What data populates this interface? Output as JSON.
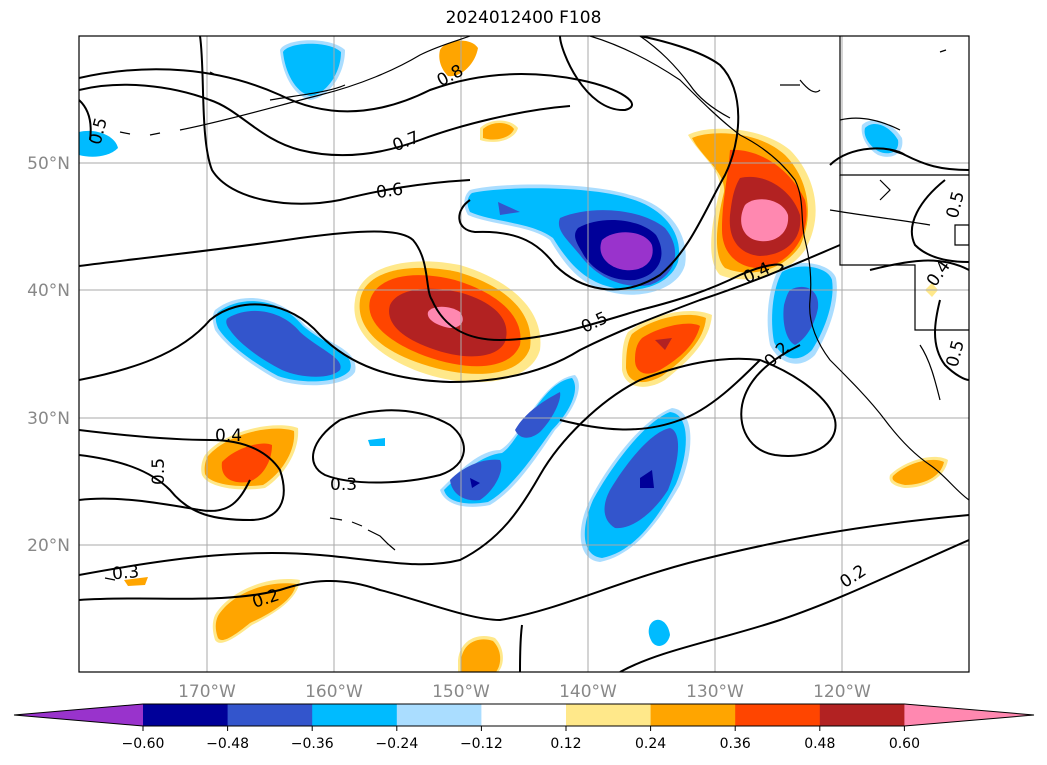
{
  "title": "2024012400 F108",
  "axes": {
    "lat_labels": [
      "50°N",
      "40°N",
      "30°N",
      "20°N"
    ],
    "lon_labels": [
      "170°W",
      "160°W",
      "150°W",
      "140°W",
      "130°W",
      "120°W"
    ]
  },
  "contour_labels": [
    "0.8",
    "0.7",
    "0.6",
    "0.5",
    "0.5",
    "0.5",
    "0.5",
    "0.5",
    "0.4",
    "0.4",
    "0.4",
    "0.3",
    "0.3",
    "0.2",
    "0.2",
    "0.2"
  ],
  "colorbar": {
    "ticks": [
      "−0.60",
      "−0.48",
      "−0.36",
      "−0.24",
      "−0.12",
      "0.12",
      "0.24",
      "0.36",
      "0.48",
      "0.60"
    ],
    "colors": [
      "#9933cc",
      "#000099",
      "#3355cc",
      "#00bbff",
      "#aaddff",
      "#ffffff",
      "#ffe88a",
      "#ffa500",
      "#ff4500",
      "#b22222",
      "#ff88b0"
    ]
  }
}
